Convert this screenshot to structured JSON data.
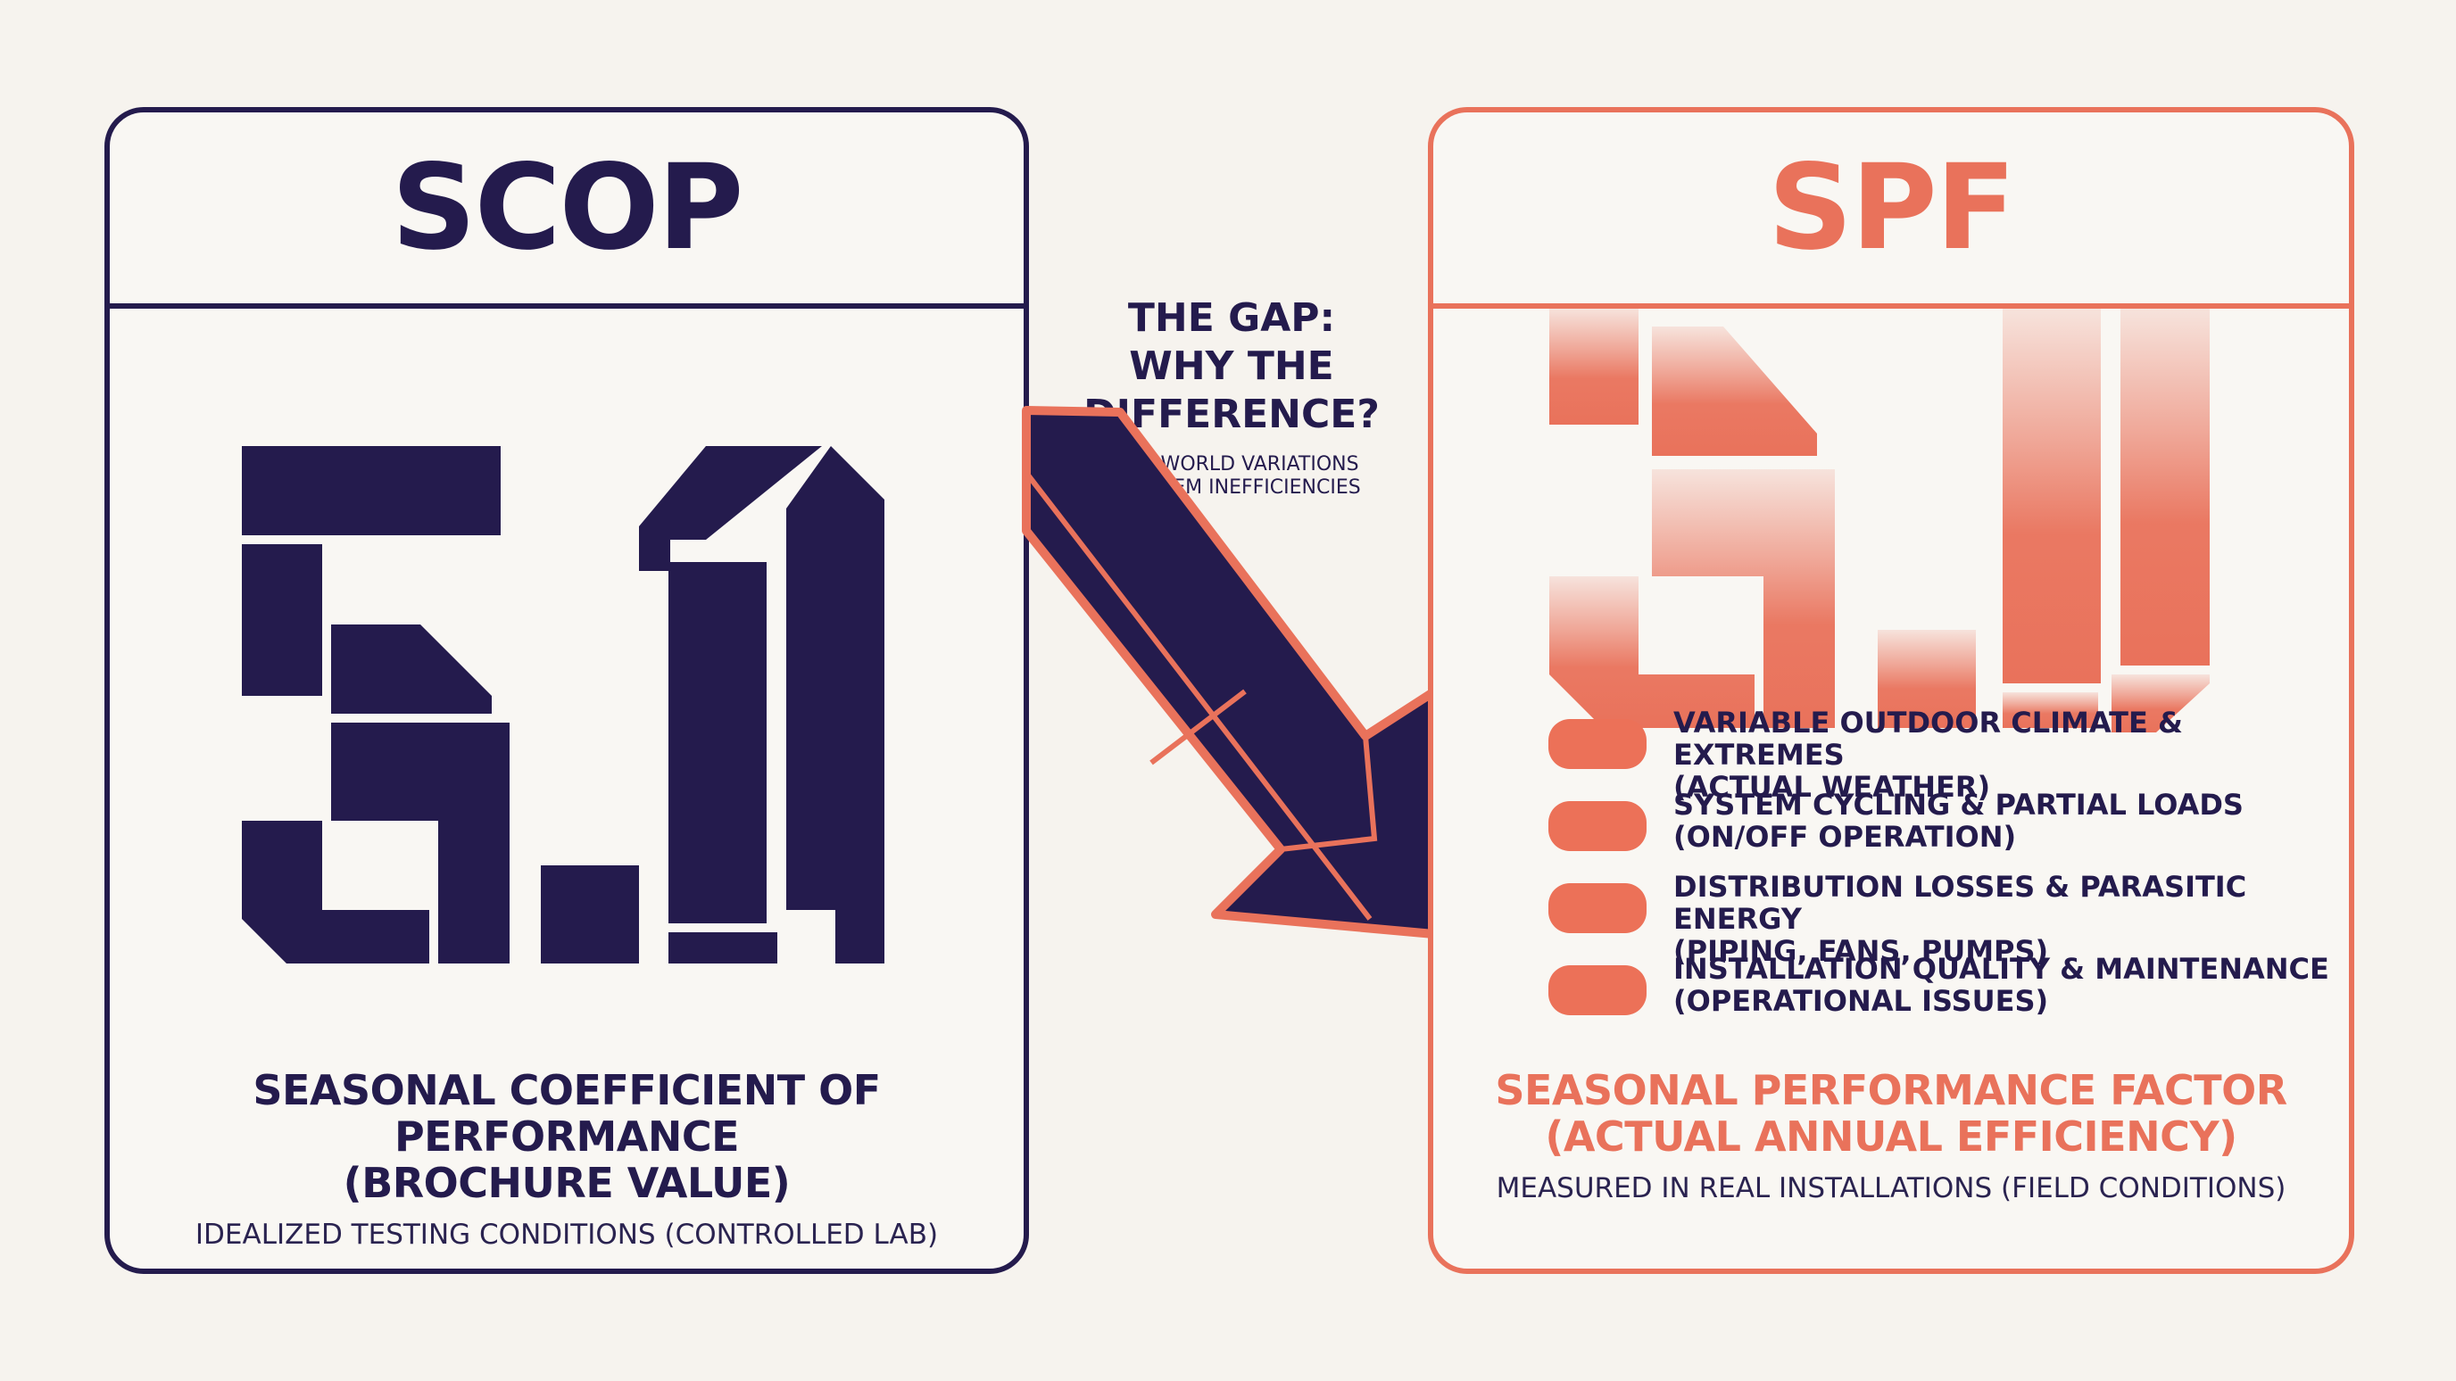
{
  "colors": {
    "navy": "#241b4d",
    "coral": "#e9725b",
    "background": "#f6f3ee"
  },
  "scop": {
    "header": "SCOP",
    "value": "5.0",
    "title_line1": "SEASONAL COEFFICIENT OF PERFORMANCE",
    "title_line2": "(BROCHURE VALUE)",
    "subtitle": "IDEALIZED TESTING CONDITIONS (CONTROLLED LAB)"
  },
  "gap": {
    "title": "THE GAP:\nWHY THE\nDIFFERENCE?",
    "subtitle": "REAL-WORLD VARIATIONS\n& SYSTEM INEFFICIENCIES",
    "arrow_icon": "diagonal-arrow-down-right"
  },
  "spf": {
    "header": "SPF",
    "value": "5.0",
    "factors": [
      "VARIABLE OUTDOOR CLIMATE & EXTREMES\n(ACTUAL WEATHER)",
      "SYSTEM CYCLING & PARTIAL LOADS\n(ON/OFF OPERATION)",
      "DISTRIBUTION LOSSES & PARASITIC ENERGY\n(PIPING, FANS, PUMPS)",
      "INSTALLATION QUALITY & MAINTENANCE\n(OPERATIONAL ISSUES)"
    ],
    "title_line1": "SEASONAL PERFORMANCE FACTOR",
    "title_line2": "(ACTUAL ANNUAL EFFICIENCY)",
    "subtitle": "MEASURED IN REAL INSTALLATIONS (FIELD CONDITIONS)"
  }
}
